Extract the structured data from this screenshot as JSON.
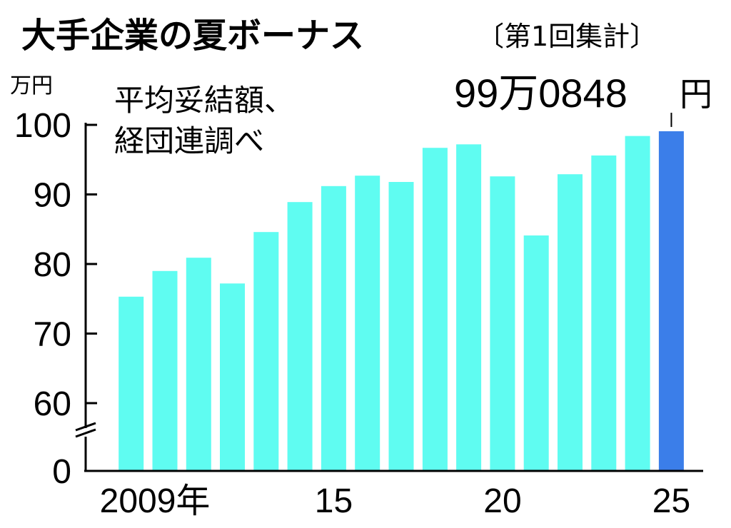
{
  "title": "大手企業の夏ボーナス",
  "subtitle": "〔第1回集計〕",
  "note_lines": [
    "平均妥結額、",
    "経団連調べ"
  ],
  "callout": {
    "value_text": "99万0848",
    "unit_text": "円"
  },
  "colors": {
    "bar": "#5ffcf1",
    "highlight": "#3b7ee9",
    "axis": "#000000"
  },
  "chart_data": {
    "type": "bar",
    "title": "大手企業の夏ボーナス",
    "ylabel": "万円",
    "xlabel": "",
    "ylim": [
      0,
      100
    ],
    "axis_break": [
      0,
      60
    ],
    "yticks": [
      0,
      60,
      70,
      80,
      90,
      100
    ],
    "ytick_labels": [
      "0",
      "60",
      "70",
      "80",
      "90",
      "100"
    ],
    "x": [
      2009,
      2010,
      2011,
      2012,
      2013,
      2014,
      2015,
      2016,
      2017,
      2018,
      2019,
      2020,
      2021,
      2022,
      2023,
      2024,
      2025
    ],
    "xtick_labels": [
      {
        "x": 2009,
        "label": "2009年"
      },
      {
        "x": 2015,
        "label": "15"
      },
      {
        "x": 2020,
        "label": "20"
      },
      {
        "x": 2025,
        "label": "25"
      }
    ],
    "values": [
      75.3,
      79.0,
      80.9,
      77.2,
      84.6,
      88.9,
      91.2,
      92.7,
      91.8,
      96.7,
      97.2,
      92.6,
      84.1,
      92.9,
      95.6,
      98.4,
      99.0848
    ],
    "highlight_index": 16,
    "grid": false,
    "legend": "none"
  }
}
